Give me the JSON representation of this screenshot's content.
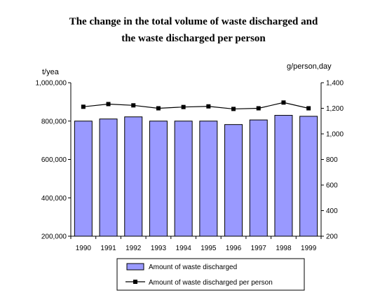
{
  "chart_data": {
    "type": "bar",
    "title_lines": [
      "The change in the total volume of waste discharged and",
      "the waste discharged per person"
    ],
    "left_unit": "t/yea",
    "right_unit": "g/person,day",
    "categories": [
      "1990",
      "1991",
      "1992",
      "1993",
      "1994",
      "1995",
      "1996",
      "1997",
      "1998",
      "1999"
    ],
    "y_left": {
      "min": 200000,
      "max": 1000000,
      "ticks": [
        200000,
        400000,
        600000,
        800000,
        1000000
      ],
      "tick_labels": [
        "200,000",
        "400,000",
        "600,000",
        "800,000",
        "1,000,000"
      ]
    },
    "y_right": {
      "min": 200,
      "max": 1400,
      "ticks": [
        200,
        400,
        600,
        800,
        1000,
        1200,
        1400
      ],
      "tick_labels": [
        "200",
        "400",
        "600",
        "800",
        "1,000",
        "1,200",
        "1,400"
      ]
    },
    "series": [
      {
        "name": "Amount of waste discharged",
        "kind": "bar",
        "axis": "left",
        "values": [
          800000,
          811000,
          822000,
          800000,
          800000,
          800000,
          782000,
          806000,
          830000,
          825000
        ]
      },
      {
        "name": "Amount of waste discharged per person",
        "kind": "line",
        "axis": "right",
        "values": [
          1212,
          1233,
          1223,
          1200,
          1210,
          1215,
          1195,
          1200,
          1245,
          1200
        ]
      }
    ],
    "colors": {
      "bar_fill": "#9999ff",
      "bar_stroke": "#000000",
      "line": "#000000",
      "marker": "#000000"
    },
    "grid": false,
    "legend_position": "bottom"
  }
}
